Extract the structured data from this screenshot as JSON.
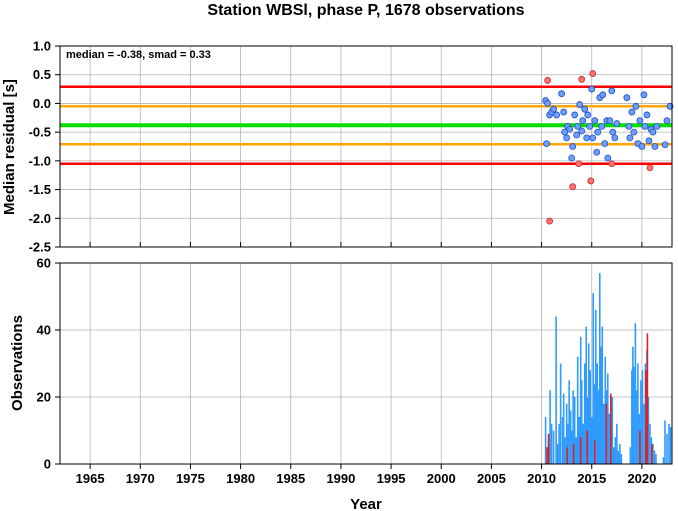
{
  "title": "Station WBSl, phase P, 1678 observations",
  "annotation": "median = -0.38, smad = 0.33",
  "colors": {
    "red_line": "#ff0000",
    "orange_line": "#ffa500",
    "green_line": "#00dd00",
    "inlier_fill": "#6d9eff",
    "outlier_fill": "#ff7070",
    "obs_bar": "#2f9bff",
    "obs_bar_outlier": "#e02020"
  },
  "chart_data": [
    {
      "type": "scatter",
      "ylabel": "Median residual [s]",
      "xlim": [
        1962,
        2023
      ],
      "ylim": [
        -2.5,
        1.0
      ],
      "yticks": [
        "1.0",
        "0.5",
        "0.0",
        "-0.5",
        "-1.0",
        "-1.5",
        "-2.0",
        "-2.5"
      ],
      "grid": true,
      "hlines": [
        {
          "y": 0.29,
          "color": "red"
        },
        {
          "y": -0.05,
          "color": "orange"
        },
        {
          "y": -0.38,
          "color": "green"
        },
        {
          "y": -0.71,
          "color": "orange"
        },
        {
          "y": -1.05,
          "color": "red"
        }
      ],
      "inliers": [
        [
          2010.4,
          0.05
        ],
        [
          2010.5,
          -0.7
        ],
        [
          2010.6,
          0.0
        ],
        [
          2010.8,
          -0.2
        ],
        [
          2011.0,
          -0.15
        ],
        [
          2011.2,
          -0.1
        ],
        [
          2011.5,
          -0.2
        ],
        [
          2012.0,
          0.17
        ],
        [
          2012.2,
          -0.15
        ],
        [
          2012.3,
          -0.5
        ],
        [
          2012.5,
          -0.6
        ],
        [
          2012.6,
          -0.4
        ],
        [
          2012.8,
          -0.45
        ],
        [
          2013.0,
          -0.95
        ],
        [
          2013.1,
          -0.75
        ],
        [
          2013.3,
          -0.2
        ],
        [
          2013.5,
          -0.55
        ],
        [
          2013.6,
          -0.4
        ],
        [
          2013.8,
          -0.02
        ],
        [
          2014.0,
          -0.48
        ],
        [
          2014.1,
          -0.3
        ],
        [
          2014.3,
          -0.1
        ],
        [
          2014.5,
          -0.6
        ],
        [
          2014.6,
          -0.2
        ],
        [
          2014.8,
          -0.4
        ],
        [
          2015.0,
          0.25
        ],
        [
          2015.1,
          -0.6
        ],
        [
          2015.3,
          -0.3
        ],
        [
          2015.5,
          -0.85
        ],
        [
          2015.6,
          -0.5
        ],
        [
          2015.8,
          0.1
        ],
        [
          2016.0,
          -0.4
        ],
        [
          2016.1,
          0.15
        ],
        [
          2016.3,
          -0.7
        ],
        [
          2016.5,
          -0.3
        ],
        [
          2016.6,
          -0.95
        ],
        [
          2016.8,
          -0.3
        ],
        [
          2017.0,
          0.22
        ],
        [
          2017.1,
          -0.5
        ],
        [
          2017.3,
          -0.6
        ],
        [
          2017.5,
          -0.35
        ],
        [
          2018.5,
          0.1
        ],
        [
          2018.7,
          -0.4
        ],
        [
          2018.8,
          -0.6
        ],
        [
          2019.0,
          -0.15
        ],
        [
          2019.2,
          -0.5
        ],
        [
          2019.4,
          -0.05
        ],
        [
          2019.6,
          -0.7
        ],
        [
          2019.8,
          -0.3
        ],
        [
          2020.0,
          -0.75
        ],
        [
          2020.2,
          0.15
        ],
        [
          2020.3,
          -0.4
        ],
        [
          2020.5,
          -0.2
        ],
        [
          2020.7,
          -0.65
        ],
        [
          2020.9,
          -0.45
        ],
        [
          2021.1,
          -0.5
        ],
        [
          2021.3,
          -0.75
        ],
        [
          2021.5,
          -0.4
        ],
        [
          2022.3,
          -0.72
        ],
        [
          2022.5,
          -0.3
        ],
        [
          2022.8,
          -0.05
        ]
      ],
      "outliers": [
        [
          2010.6,
          0.4
        ],
        [
          2010.8,
          -2.05
        ],
        [
          2013.1,
          -1.45
        ],
        [
          2013.7,
          -1.05
        ],
        [
          2014.0,
          0.42
        ],
        [
          2014.9,
          -1.35
        ],
        [
          2015.1,
          0.52
        ],
        [
          2017.0,
          -1.05
        ],
        [
          2020.8,
          -1.12
        ]
      ]
    },
    {
      "type": "bar",
      "xlabel": "Year",
      "ylabel": "Observations",
      "xlim": [
        1962,
        2023
      ],
      "ylim": [
        0,
        60
      ],
      "xticks": [
        "1965",
        "1970",
        "1975",
        "1980",
        "1985",
        "1990",
        "1995",
        "2000",
        "2005",
        "2010",
        "2015",
        "2020"
      ],
      "yticks": [
        "0",
        "20",
        "40",
        "60"
      ],
      "grid": true,
      "bars": [
        [
          2010.4,
          14
        ],
        [
          2010.55,
          5
        ],
        [
          2010.7,
          8
        ],
        [
          2010.85,
          22
        ],
        [
          2011.0,
          12
        ],
        [
          2011.2,
          10
        ],
        [
          2011.45,
          44
        ],
        [
          2011.6,
          6
        ],
        [
          2011.75,
          12
        ],
        [
          2011.9,
          30
        ],
        [
          2012.1,
          14
        ],
        [
          2012.2,
          21
        ],
        [
          2012.35,
          8
        ],
        [
          2012.5,
          18
        ],
        [
          2012.6,
          12
        ],
        [
          2012.75,
          25
        ],
        [
          2012.9,
          16
        ],
        [
          2013.05,
          10
        ],
        [
          2013.15,
          22
        ],
        [
          2013.3,
          20
        ],
        [
          2013.45,
          8
        ],
        [
          2013.6,
          32
        ],
        [
          2013.75,
          14
        ],
        [
          2013.9,
          38
        ],
        [
          2014.0,
          25
        ],
        [
          2014.15,
          12
        ],
        [
          2014.3,
          30
        ],
        [
          2014.45,
          41
        ],
        [
          2014.6,
          20
        ],
        [
          2014.7,
          36
        ],
        [
          2014.85,
          28
        ],
        [
          2015.0,
          14
        ],
        [
          2015.15,
          51
        ],
        [
          2015.3,
          24
        ],
        [
          2015.4,
          46
        ],
        [
          2015.55,
          30
        ],
        [
          2015.65,
          22
        ],
        [
          2015.8,
          57
        ],
        [
          2015.95,
          35
        ],
        [
          2016.05,
          41
        ],
        [
          2016.2,
          18
        ],
        [
          2016.35,
          32
        ],
        [
          2016.5,
          22
        ],
        [
          2016.6,
          27
        ],
        [
          2016.75,
          15
        ],
        [
          2016.9,
          10
        ],
        [
          2017.05,
          20
        ],
        [
          2017.2,
          5
        ],
        [
          2017.35,
          8
        ],
        [
          2017.5,
          12
        ],
        [
          2017.65,
          4
        ],
        [
          2017.8,
          6
        ],
        [
          2017.95,
          3
        ],
        [
          2018.85,
          5
        ],
        [
          2019.0,
          28
        ],
        [
          2019.1,
          35
        ],
        [
          2019.2,
          29
        ],
        [
          2019.35,
          42
        ],
        [
          2019.5,
          22
        ],
        [
          2019.6,
          30
        ],
        [
          2019.75,
          15
        ],
        [
          2019.9,
          25
        ],
        [
          2020.05,
          28
        ],
        [
          2020.2,
          18
        ],
        [
          2020.35,
          30
        ],
        [
          2020.5,
          34
        ],
        [
          2020.65,
          20
        ],
        [
          2020.8,
          12
        ],
        [
          2020.95,
          8
        ],
        [
          2021.1,
          6
        ],
        [
          2021.25,
          4
        ],
        [
          2021.4,
          3
        ],
        [
          2022.15,
          2
        ],
        [
          2022.3,
          13
        ],
        [
          2022.5,
          9
        ],
        [
          2022.7,
          12
        ],
        [
          2022.85,
          11
        ]
      ],
      "outlier_bars": [
        [
          2010.55,
          5
        ],
        [
          2010.7,
          9
        ],
        [
          2012.55,
          5
        ],
        [
          2013.2,
          6
        ],
        [
          2013.9,
          8
        ],
        [
          2014.55,
          10
        ],
        [
          2015.3,
          7
        ],
        [
          2016.45,
          18
        ],
        [
          2016.9,
          21
        ],
        [
          2019.8,
          10
        ],
        [
          2020.4,
          28
        ],
        [
          2020.55,
          39
        ],
        [
          2021.0,
          6
        ]
      ]
    }
  ]
}
